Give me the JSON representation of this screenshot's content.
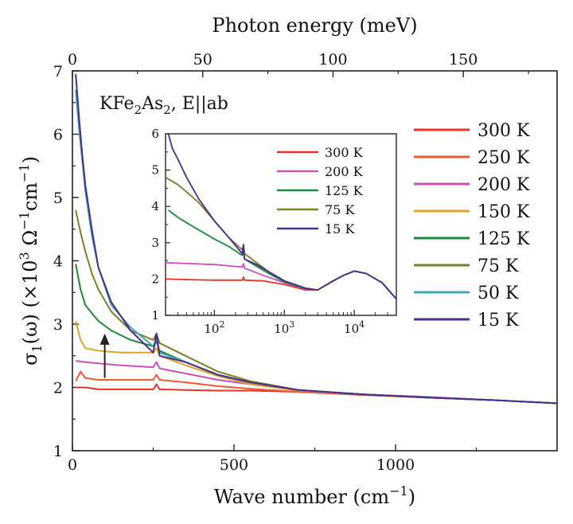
{
  "chart_data": [
    {
      "id": "main",
      "type": "line",
      "annotation": {
        "base": "KFe",
        "sub1": "2",
        "mid": "As",
        "sub2": "2",
        "rest": ", E||ab"
      },
      "xlabel": {
        "text": "Wave number (cm",
        "sup": "−1",
        "close": ")"
      },
      "x2label": "Photon energy (meV)",
      "ylabel": {
        "a": "σ",
        "a_sub": "1",
        "b": "(ω) (×10",
        "b_sup": "3",
        "c": " Ω",
        "c_sup": "−1",
        "d": "cm",
        "d_sup": "−1",
        "e": ")"
      },
      "xlim": [
        0,
        1500
      ],
      "ylim": [
        1,
        7
      ],
      "x_ticks": [
        0,
        500,
        1000
      ],
      "y_ticks": [
        1,
        2,
        3,
        4,
        5,
        6,
        7
      ],
      "x2_ticks_meV": [
        0,
        50,
        100,
        150
      ],
      "meV_per_cm": 0.123984,
      "legend_position": "right",
      "series": [
        {
          "name": "300 K",
          "color": "#e8322a",
          "x": [
            10,
            40,
            80,
            150,
            250,
            260,
            270,
            350,
            450,
            550,
            700,
            900,
            1100,
            1300,
            1500
          ],
          "y": [
            2.0,
            2.0,
            1.97,
            1.97,
            1.97,
            2.05,
            1.97,
            1.96,
            1.95,
            1.95,
            1.93,
            1.88,
            1.84,
            1.8,
            1.75
          ]
        },
        {
          "name": "250 K",
          "color": "#f05a32",
          "x": [
            10,
            25,
            40,
            80,
            150,
            250,
            260,
            270,
            350,
            450,
            550,
            700,
            900,
            1100,
            1300,
            1500
          ],
          "y": [
            2.1,
            2.25,
            2.15,
            2.12,
            2.12,
            2.12,
            2.2,
            2.12,
            2.08,
            2.02,
            1.98,
            1.93,
            1.88,
            1.84,
            1.8,
            1.75
          ]
        },
        {
          "name": "200 K",
          "color": "#c84fbe",
          "x": [
            10,
            40,
            80,
            150,
            250,
            260,
            270,
            350,
            450,
            550,
            700,
            900,
            1100,
            1300,
            1500
          ],
          "y": [
            2.42,
            2.4,
            2.38,
            2.35,
            2.32,
            2.4,
            2.3,
            2.22,
            2.12,
            2.05,
            1.95,
            1.89,
            1.85,
            1.8,
            1.75
          ]
        },
        {
          "name": "150 K",
          "color": "#d9a52a",
          "x": [
            10,
            25,
            40,
            80,
            150,
            250,
            260,
            270,
            350,
            450,
            550,
            700,
            900,
            1100,
            1300,
            1500
          ],
          "y": [
            3.05,
            2.75,
            2.62,
            2.58,
            2.55,
            2.55,
            2.62,
            2.5,
            2.35,
            2.18,
            2.05,
            1.95,
            1.89,
            1.84,
            1.8,
            1.75
          ]
        },
        {
          "name": "125 K",
          "color": "#1a8a3a",
          "x": [
            10,
            25,
            40,
            80,
            120,
            180,
            250,
            260,
            270,
            350,
            450,
            550,
            700,
            900,
            1100,
            1300,
            1500
          ],
          "y": [
            3.95,
            3.55,
            3.3,
            3.05,
            2.9,
            2.75,
            2.65,
            2.72,
            2.58,
            2.4,
            2.2,
            2.08,
            1.96,
            1.89,
            1.84,
            1.8,
            1.75
          ]
        },
        {
          "name": "75 K",
          "color": "#7a7f2a",
          "x": [
            10,
            25,
            40,
            60,
            80,
            120,
            180,
            250,
            260,
            270,
            350,
            450,
            550,
            700,
            900,
            1100,
            1300,
            1500
          ],
          "y": [
            4.8,
            4.45,
            4.15,
            3.8,
            3.55,
            3.2,
            2.9,
            2.75,
            2.85,
            2.7,
            2.5,
            2.25,
            2.1,
            1.96,
            1.89,
            1.84,
            1.8,
            1.75
          ]
        },
        {
          "name": "50 K",
          "color": "#45a7b5",
          "x": [
            10,
            20,
            30,
            40,
            60,
            80,
            120,
            180,
            250,
            260,
            270,
            350,
            450,
            550,
            700,
            900,
            1100,
            1300,
            1500
          ],
          "y": [
            6.7,
            6.1,
            5.6,
            5.1,
            4.4,
            3.9,
            3.3,
            2.95,
            2.65,
            2.75,
            2.55,
            2.4,
            2.2,
            2.08,
            1.96,
            1.89,
            1.84,
            1.8,
            1.75
          ]
        },
        {
          "name": "15 K",
          "color": "#4a2d8c",
          "x": [
            10,
            20,
            30,
            40,
            60,
            80,
            120,
            180,
            250,
            260,
            270,
            350,
            450,
            550,
            700,
            900,
            1100,
            1300,
            1500
          ],
          "y": [
            6.95,
            6.3,
            5.7,
            5.2,
            4.5,
            3.9,
            3.35,
            2.9,
            2.55,
            2.85,
            2.5,
            2.4,
            2.2,
            2.08,
            1.96,
            1.89,
            1.84,
            1.8,
            1.75
          ]
        }
      ],
      "arrow": {
        "x": 100,
        "y_from": 2.15,
        "y_to": 2.85
      }
    },
    {
      "id": "inset",
      "type": "line",
      "xscale": "log",
      "xlim": [
        20,
        40000
      ],
      "ylim": [
        1,
        6
      ],
      "y_ticks": [
        1,
        2,
        3,
        4,
        5,
        6
      ],
      "x_ticks": [
        100,
        1000,
        10000
      ],
      "x_tick_labels": [
        {
          "base": "10",
          "exp": "2"
        },
        {
          "base": "10",
          "exp": "3"
        },
        {
          "base": "10",
          "exp": "4"
        }
      ],
      "series": [
        {
          "name": "300 K",
          "color": "#e8322a",
          "x": [
            20,
            50,
            100,
            250,
            260,
            270,
            500,
            1000,
            2000,
            3000,
            5000,
            7000,
            10000,
            15000,
            25000,
            40000
          ],
          "y": [
            2.0,
            1.98,
            1.97,
            1.97,
            2.05,
            1.97,
            1.95,
            1.85,
            1.7,
            1.7,
            1.95,
            2.1,
            2.22,
            2.15,
            1.9,
            1.45
          ]
        },
        {
          "name": "200 K",
          "color": "#c84fbe",
          "x": [
            20,
            50,
            100,
            250,
            260,
            270,
            500,
            1000,
            2000,
            3000,
            5000,
            7000,
            10000,
            15000,
            25000,
            40000
          ],
          "y": [
            2.45,
            2.42,
            2.4,
            2.33,
            2.42,
            2.3,
            2.1,
            1.9,
            1.72,
            1.7,
            1.95,
            2.1,
            2.22,
            2.15,
            1.9,
            1.45
          ]
        },
        {
          "name": "125 K",
          "color": "#1a8a3a",
          "x": [
            22,
            30,
            40,
            60,
            100,
            160,
            250,
            260,
            270,
            400,
            600,
            1000,
            2000,
            3000,
            5000,
            7000,
            10000,
            15000,
            25000,
            40000
          ],
          "y": [
            3.9,
            3.7,
            3.55,
            3.35,
            3.1,
            2.9,
            2.65,
            2.75,
            2.55,
            2.35,
            2.15,
            1.92,
            1.73,
            1.7,
            1.95,
            2.1,
            2.22,
            2.15,
            1.9,
            1.45
          ]
        },
        {
          "name": "75 K",
          "color": "#7a7f2a",
          "x": [
            20,
            30,
            40,
            60,
            100,
            160,
            250,
            260,
            270,
            400,
            600,
            1000,
            2000,
            3000,
            5000,
            7000,
            10000,
            15000,
            25000,
            40000
          ],
          "y": [
            4.8,
            4.6,
            4.4,
            4.1,
            3.6,
            3.15,
            2.8,
            2.95,
            2.7,
            2.45,
            2.2,
            1.95,
            1.75,
            1.7,
            1.95,
            2.1,
            2.22,
            2.15,
            1.9,
            1.45
          ]
        },
        {
          "name": "15 K",
          "color": "#4a2d8c",
          "x": [
            22,
            25,
            30,
            40,
            60,
            100,
            160,
            250,
            260,
            270,
            400,
            600,
            1000,
            2000,
            3000,
            5000,
            7000,
            10000,
            15000,
            25000,
            40000
          ],
          "y": [
            6.0,
            5.6,
            5.3,
            4.8,
            4.2,
            3.6,
            3.15,
            2.7,
            2.95,
            2.55,
            2.4,
            2.2,
            1.95,
            1.75,
            1.7,
            1.95,
            2.1,
            2.22,
            2.15,
            1.9,
            1.45
          ]
        }
      ]
    }
  ]
}
